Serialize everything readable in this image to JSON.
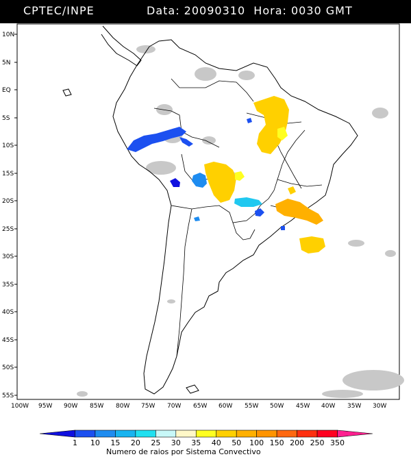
{
  "header": {
    "left_title": "CPTEC/INPE",
    "right_title": "Data: 20090310  Hora: 0030 GMT"
  },
  "map": {
    "region": "South America",
    "lat_labels": [
      "10N",
      "5N",
      "EQ",
      "5S",
      "10S",
      "15S",
      "20S",
      "25S",
      "30S",
      "35S",
      "40S",
      "45S",
      "50S",
      "55S"
    ],
    "lon_labels": [
      "100W",
      "95W",
      "90W",
      "85W",
      "80W",
      "75W",
      "70W",
      "65W",
      "60W",
      "55W",
      "50W",
      "45W",
      "40W",
      "35W",
      "30W"
    ]
  },
  "colorbar": {
    "labels": [
      "1",
      "10",
      "15",
      "20",
      "25",
      "30",
      "35",
      "40",
      "50",
      "100",
      "150",
      "200",
      "250",
      "350"
    ],
    "colors": [
      "#1010e0",
      "#1c50f0",
      "#1e8cf0",
      "#18b4f0",
      "#20e0f0",
      "#c8f8f8",
      "#fff8c8",
      "#ffff20",
      "#ffd000",
      "#ffb000",
      "#ff9400",
      "#ff6810",
      "#ff3010",
      "#ff0020",
      "#ff2090"
    ],
    "title": "Numero de raios por Sistema Convectivo"
  },
  "colors": {
    "background": "#ffffff",
    "header": "#000000",
    "coastline": "#000000",
    "cloud_gray": "#c6c6c6"
  }
}
